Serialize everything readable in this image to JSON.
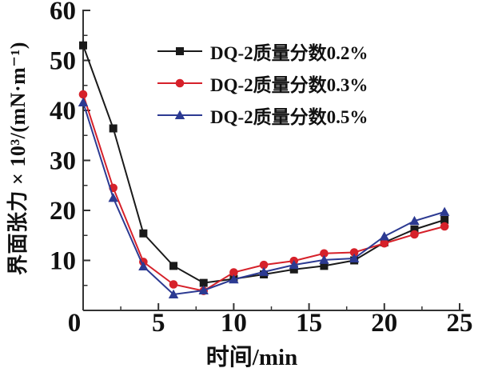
{
  "figure": {
    "background": "#ffffff",
    "axis_color": "#333333"
  },
  "chart_data": {
    "type": "line",
    "title": "",
    "xlabel": "时间/min",
    "ylabel": "界面张力 × 10³/(mN·m⁻¹)",
    "xlim": [
      0,
      25
    ],
    "ylim": [
      0,
      60
    ],
    "x_major_ticks": [
      0,
      5,
      10,
      15,
      20,
      25
    ],
    "x_minor_ticks": [
      2.5,
      7.5,
      12.5,
      17.5,
      22.5
    ],
    "y_major_ticks": [
      0,
      10,
      20,
      30,
      40,
      50,
      60
    ],
    "y_minor_ticks": [
      5,
      15,
      25,
      35,
      45,
      55
    ],
    "grid": false,
    "legend_position": "upper center",
    "x": [
      0,
      2,
      4,
      6,
      8,
      10,
      12,
      14,
      16,
      18,
      20,
      22,
      24
    ],
    "series": [
      {
        "name": "DQ-2质量分数0.2%",
        "marker": "square",
        "color": "#1a1a1a",
        "values": [
          53.0,
          36.4,
          15.4,
          8.9,
          5.5,
          6.3,
          7.2,
          8.2,
          8.9,
          10.0,
          13.6,
          16.2,
          18.1
        ]
      },
      {
        "name": "DQ-2质量分数0.3%",
        "marker": "circle",
        "color": "#d6212a",
        "values": [
          43.2,
          24.5,
          9.7,
          5.2,
          3.9,
          7.6,
          9.1,
          9.9,
          11.4,
          11.6,
          13.4,
          15.2,
          16.8
        ]
      },
      {
        "name": "DQ-2质量分数0.5%",
        "marker": "triangle",
        "color": "#2c3a92",
        "values": [
          41.6,
          22.5,
          8.8,
          3.2,
          4.0,
          6.2,
          7.7,
          9.1,
          10.1,
          10.4,
          14.8,
          17.9,
          19.7
        ]
      }
    ]
  }
}
